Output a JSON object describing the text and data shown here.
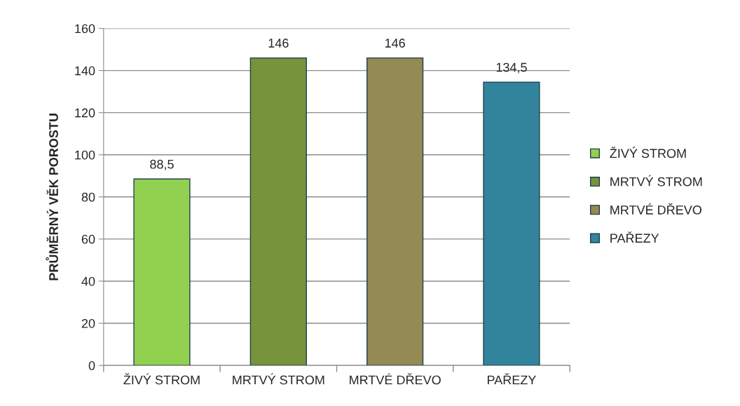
{
  "chart_data": {
    "type": "bar",
    "ylabel": "PRŮMĚRNÝ VĚK POROSTU",
    "categories": [
      "ŽIVÝ STROM",
      "MRTVÝ STROM",
      "MRTVÉ DŘEVO",
      "PAŘEZY"
    ],
    "series": [
      {
        "name": "ŽIVÝ STROM",
        "color": "#92d050",
        "values": [
          88.5,
          null,
          null,
          null
        ],
        "value_labels": [
          "88,5",
          null,
          null,
          null
        ]
      },
      {
        "name": "MRTVÝ STROM",
        "color": "#77933c",
        "values": [
          null,
          146,
          null,
          null
        ],
        "value_labels": [
          null,
          "146",
          null,
          null
        ]
      },
      {
        "name": "MRTVÉ DŘEVO",
        "color": "#948a54",
        "values": [
          null,
          null,
          146,
          null
        ],
        "value_labels": [
          null,
          null,
          "146",
          null
        ]
      },
      {
        "name": "PAŘEZY",
        "color": "#31849b",
        "values": [
          null,
          null,
          null,
          134.5
        ],
        "value_labels": [
          null,
          null,
          null,
          "134,5"
        ]
      }
    ],
    "ylim": [
      0,
      160
    ],
    "yticks": [
      0,
      20,
      40,
      60,
      80,
      100,
      120,
      140,
      160
    ],
    "grid": "y",
    "legend": "right"
  }
}
